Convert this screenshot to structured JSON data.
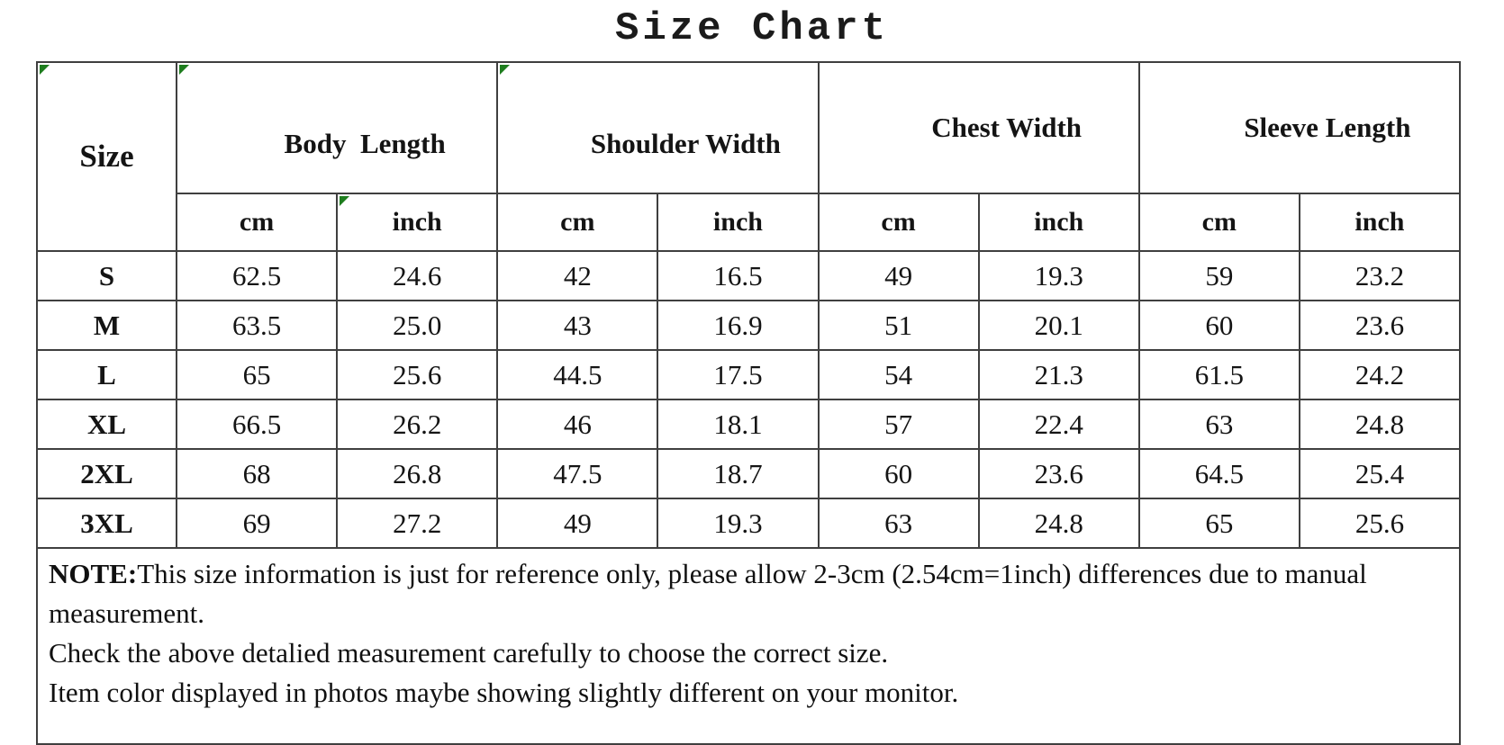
{
  "title": "Size Chart",
  "colors": {
    "border": "#3f3f3f",
    "marker_green": "#1e7d1e"
  },
  "table": {
    "corner_header": "Size",
    "groups": [
      {
        "label": "Body  Length"
      },
      {
        "label": "Shoulder Width"
      },
      {
        "label": "Chest Width"
      },
      {
        "label": "Sleeve Length"
      }
    ],
    "units": {
      "cm": "cm",
      "inch": "inch"
    },
    "rows": [
      {
        "size": "S",
        "cells": [
          "62.5",
          "24.6",
          "42",
          "16.5",
          "49",
          "19.3",
          "59",
          "23.2"
        ]
      },
      {
        "size": "M",
        "cells": [
          "63.5",
          "25.0",
          "43",
          "16.9",
          "51",
          "20.1",
          "60",
          "23.6"
        ]
      },
      {
        "size": "L",
        "cells": [
          "65",
          "25.6",
          "44.5",
          "17.5",
          "54",
          "21.3",
          "61.5",
          "24.2"
        ]
      },
      {
        "size": "XL",
        "cells": [
          "66.5",
          "26.2",
          "46",
          "18.1",
          "57",
          "22.4",
          "63",
          "24.8"
        ]
      },
      {
        "size": "2XL",
        "cells": [
          "68",
          "26.8",
          "47.5",
          "18.7",
          "60",
          "23.6",
          "64.5",
          "25.4"
        ]
      },
      {
        "size": "3XL",
        "cells": [
          "69",
          "27.2",
          "49",
          "19.3",
          "63",
          "24.8",
          "65",
          "25.6"
        ]
      }
    ]
  },
  "note": {
    "label": "NOTE:",
    "line1": "This size information is just for reference only, please allow 2-3cm (2.54cm=1inch) differences due to manual measurement.",
    "line2": "Check the above detalied measurement carefully to choose the correct size.",
    "line3": "Item color displayed in photos maybe showing slightly different on your monitor."
  }
}
